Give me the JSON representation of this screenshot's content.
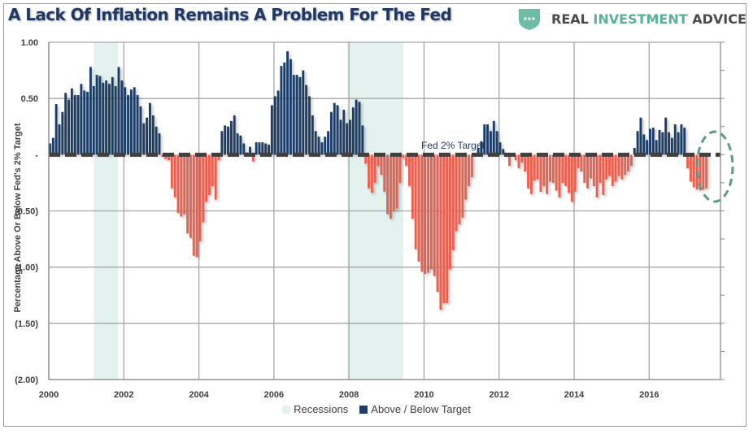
{
  "header": {
    "title": "A Lack Of Inflation Remains A Problem For The Fed",
    "brand": {
      "part1": "REAL",
      "part2": "INVESTMENT",
      "part3": "ADVICE",
      "icon": "shield-dots-icon"
    }
  },
  "colors": {
    "positive": "#1f3d66",
    "negative": "#e96050",
    "recession": "#e3f2ef",
    "target_line": "#404040",
    "annotation_ellipse": "#5a9a86",
    "title": "#1f3864"
  },
  "chart_data": {
    "type": "bar",
    "title": "A Lack Of Inflation Remains A Problem For The Fed",
    "xlabel": "",
    "ylabel": "Percentage Above Or Below Fed's 2% Target",
    "ylim": [
      -2.0,
      1.0
    ],
    "xlim": [
      2000,
      2017.9
    ],
    "y_ticks": [
      1.0,
      0.5,
      0,
      -0.5,
      -1.0,
      -1.5,
      -2.0
    ],
    "y_tick_labels": [
      "1.00",
      "0.50",
      "-",
      "(0.50)",
      "(1.00)",
      "(1.50)",
      "(2.00)"
    ],
    "x_ticks": [
      2000,
      2002,
      2004,
      2006,
      2008,
      2010,
      2012,
      2014,
      2016
    ],
    "x_tick_labels": [
      "2000",
      "2002",
      "2004",
      "2006",
      "2008",
      "2010",
      "2012",
      "2014",
      "2016"
    ],
    "grid": true,
    "legend_position": "bottom",
    "legend": [
      "Recessions",
      "Above / Below Target"
    ],
    "annotations": [
      {
        "text": "Fed 2% Target",
        "y": 0
      }
    ],
    "recessions": [
      [
        2001.2,
        2001.85
      ],
      [
        2007.95,
        2009.45
      ]
    ],
    "x_start": 2000.0,
    "x_step": 0.0833,
    "series": [
      {
        "name": "Above / Below Target",
        "values": [
          0.1,
          0.15,
          0.45,
          0.27,
          0.38,
          0.55,
          0.49,
          0.59,
          0.53,
          0.53,
          0.63,
          0.57,
          0.56,
          0.78,
          0.61,
          0.71,
          0.7,
          0.64,
          0.66,
          0.63,
          0.69,
          0.61,
          0.78,
          0.66,
          0.6,
          0.53,
          0.58,
          0.6,
          0.53,
          0.43,
          0.28,
          0.33,
          0.46,
          0.35,
          0.25,
          0.19,
          -0.02,
          -0.04,
          -0.05,
          -0.3,
          -0.38,
          -0.52,
          -0.55,
          -0.53,
          -0.7,
          -0.74,
          -0.9,
          -0.91,
          -0.77,
          -0.6,
          -0.42,
          -0.36,
          -0.28,
          -0.4,
          -0.05,
          0.21,
          0.26,
          0.25,
          0.3,
          0.35,
          0.19,
          0.17,
          0.1,
          0.02,
          0.07,
          -0.06,
          0.11,
          0.11,
          0.11,
          0.1,
          0.09,
          0.44,
          0.52,
          0.57,
          0.79,
          0.82,
          0.92,
          0.85,
          0.71,
          0.71,
          0.69,
          0.75,
          0.62,
          0.52,
          0.35,
          0.21,
          0.16,
          0.11,
          0.16,
          0.21,
          0.38,
          0.46,
          0.44,
          0.31,
          0.4,
          0.28,
          0.31,
          0.42,
          0.49,
          0.47,
          0.26,
          -0.08,
          -0.3,
          -0.34,
          -0.25,
          -0.1,
          -0.18,
          -0.33,
          -0.53,
          -0.57,
          -0.5,
          -0.48,
          -0.25,
          -0.03,
          -0.1,
          -0.28,
          -0.57,
          -0.84,
          -0.95,
          -1.04,
          -1.06,
          -1.05,
          -1.02,
          -1.08,
          -1.22,
          -1.38,
          -1.32,
          -1.32,
          -1.02,
          -0.85,
          -0.68,
          -0.62,
          -0.56,
          -0.4,
          -0.28,
          -0.2,
          0.0,
          0.06,
          0.12,
          0.27,
          0.27,
          0.21,
          0.3,
          0.21,
          0.11,
          0.05,
          -0.02,
          -0.1,
          -0.01,
          -0.05,
          -0.12,
          -0.07,
          -0.15,
          -0.3,
          -0.35,
          -0.23,
          -0.22,
          -0.33,
          -0.28,
          -0.35,
          -0.24,
          -0.25,
          -0.32,
          -0.38,
          -0.25,
          -0.28,
          -0.34,
          -0.42,
          -0.33,
          -0.12,
          -0.15,
          -0.25,
          -0.3,
          -0.21,
          -0.28,
          -0.38,
          -0.25,
          -0.36,
          -0.22,
          -0.19,
          -0.28,
          -0.24,
          -0.19,
          -0.22,
          -0.18,
          -0.15,
          -0.1,
          0.06,
          0.21,
          0.33,
          0.18,
          0.13,
          0.23,
          0.24,
          0.13,
          0.22,
          0.2,
          0.33,
          0.2,
          0.15,
          0.27,
          0.2,
          0.27,
          0.24,
          -0.12,
          -0.24,
          -0.29,
          -0.31,
          -0.31,
          -0.31,
          -0.3
        ]
      }
    ]
  }
}
